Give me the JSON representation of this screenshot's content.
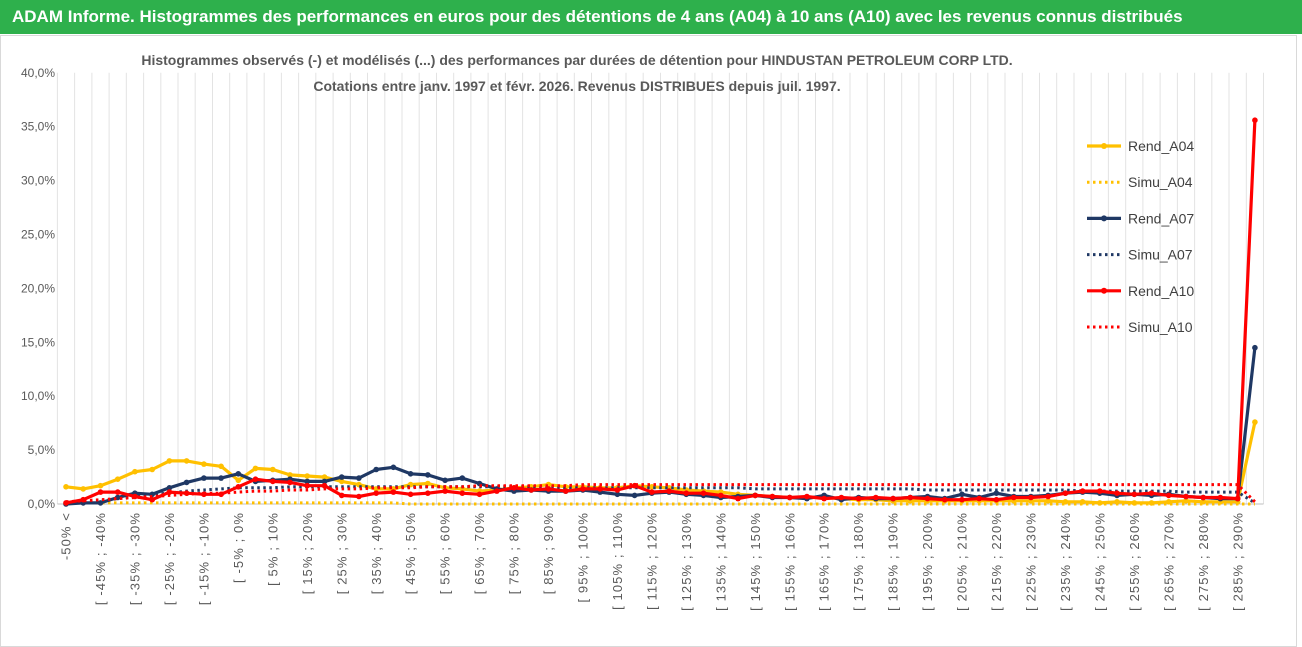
{
  "header": {
    "title": "ADAM Informe. Histogrammes des performances en euros pour des détentions de 4 ans (A04) à 10 ans (A10) avec les revenus connus distribués"
  },
  "colors": {
    "header_bg": "#2EB04C",
    "header_text": "#FFFFFF",
    "a04": "#FFC000",
    "a07": "#1F3864",
    "a10": "#FF0000"
  },
  "chart_data": {
    "type": "line",
    "title": [
      "Histogrammes observés (-) et modélisés (...) des performances par durées de détention pour HINDUSTAN PETROLEUM CORP LTD.",
      "Cotations entre janv. 1997 et févr. 2026. Revenus DISTRIBUES depuis juil. 1997."
    ],
    "xlabel": "",
    "ylabel": "",
    "ylim": [
      0,
      40
    ],
    "y_ticks": [
      0,
      5,
      10,
      15,
      20,
      25,
      30,
      35,
      40
    ],
    "y_tick_labels": [
      "0,0%",
      "5,0%",
      "10,0%",
      "15,0%",
      "20,0%",
      "25,0%",
      "30,0%",
      "35,0%",
      "40,0%"
    ],
    "category_count": 70,
    "x_tick_every": 2,
    "x_tick_labels": [
      "-50% <",
      "[ -45% ; -40%",
      "[ -35% ; -30%",
      "[ -25% ; -20%",
      "[ -15% ; -10%",
      "[ -5% ; 0%",
      "[ 5% ; 10%",
      "[ 15% ; 20%",
      "[ 25% ; 30%",
      "[ 35% ; 40%",
      "[ 45% ; 50%",
      "[ 55% ; 60%",
      "[ 65% ; 70%",
      "[ 75% ; 80%",
      "[ 85% ; 90%",
      "[ 95% ; 100%",
      "[ 105% ; 110%",
      "[ 115% ; 120%",
      "[ 125% ; 130%",
      "[ 135% ; 140%",
      "[ 145% ; 150%",
      "[ 155% ; 160%",
      "[ 165% ; 170%",
      "[ 175% ; 180%",
      "[ 185% ; 190%",
      "[ 195% ; 200%",
      "[ 205% ; 210%",
      "[ 215% ; 220%",
      "[ 225% ; 230%",
      "[ 235% ; 240%",
      "[ 245% ; 250%",
      "[ 255% ; 260%",
      "[ 265% ; 270%",
      "[ 275% ; 280%",
      "[ 285% ; 290%"
    ],
    "legend_position": "right",
    "grid": {
      "vertical": true,
      "horizontal": false
    },
    "series": [
      {
        "name": "Rend_A04",
        "color": "#FFC000",
        "dotted": false,
        "markers": true,
        "values": [
          1.6,
          1.4,
          1.7,
          2.3,
          3.0,
          3.2,
          4.0,
          4.0,
          3.7,
          3.5,
          2.2,
          3.3,
          3.2,
          2.7,
          2.6,
          2.5,
          2.1,
          1.8,
          1.4,
          1.4,
          1.8,
          1.9,
          1.5,
          1.4,
          1.2,
          1.3,
          1.5,
          1.6,
          1.8,
          1.6,
          1.6,
          1.5,
          1.5,
          1.7,
          1.6,
          1.5,
          1.3,
          1.2,
          1.1,
          0.9,
          0.8,
          0.7,
          0.6,
          0.6,
          0.6,
          0.5,
          0.4,
          0.4,
          0.3,
          0.3,
          0.3,
          0.3,
          0.3,
          0.3,
          0.3,
          0.3,
          0.3,
          0.3,
          0.2,
          0.2,
          0.1,
          0.2,
          0.1,
          0.1,
          0.2,
          0.3,
          0.2,
          0.2,
          0.2,
          7.6
        ]
      },
      {
        "name": "Simu_A04",
        "color": "#FFC000",
        "dotted": true,
        "markers": false,
        "values": [
          0.1,
          0.1,
          0.1,
          0.1,
          0.1,
          0.1,
          0.1,
          0.1,
          0.1,
          0.1,
          0.1,
          0.1,
          0.1,
          0.1,
          0.1,
          0.1,
          0.1,
          0.1,
          0.1,
          0.1,
          0.0,
          0.0,
          0.0,
          0.0,
          0.0,
          0.0,
          0.0,
          0.0,
          0.0,
          0.0,
          0.0,
          0.0,
          0.0,
          0.0,
          0.0,
          0.0,
          0.0,
          0.0,
          0.0,
          0.0,
          0.0,
          0.0,
          0.0,
          0.0,
          0.0,
          0.0,
          0.0,
          0.0,
          0.0,
          0.0,
          0.0,
          0.0,
          0.0,
          0.0,
          0.0,
          0.0,
          0.0,
          0.0,
          0.0,
          0.0,
          0.0,
          0.0,
          0.0,
          0.0,
          0.0,
          0.0,
          0.0,
          0.0,
          0.0,
          0.0
        ]
      },
      {
        "name": "Rend_A07",
        "color": "#1F3864",
        "dotted": false,
        "markers": true,
        "values": [
          0.0,
          0.1,
          0.1,
          0.6,
          1.0,
          0.9,
          1.5,
          2.0,
          2.4,
          2.4,
          2.8,
          2.1,
          2.2,
          2.3,
          2.1,
          2.1,
          2.5,
          2.4,
          3.2,
          3.4,
          2.8,
          2.7,
          2.2,
          2.4,
          1.9,
          1.4,
          1.2,
          1.3,
          1.2,
          1.2,
          1.3,
          1.1,
          0.9,
          0.8,
          1.0,
          1.1,
          0.9,
          0.8,
          0.6,
          0.7,
          0.8,
          0.6,
          0.6,
          0.5,
          0.8,
          0.4,
          0.6,
          0.5,
          0.5,
          0.6,
          0.7,
          0.5,
          0.9,
          0.6,
          1.0,
          0.7,
          0.7,
          0.8,
          1.0,
          1.1,
          1.0,
          0.8,
          0.9,
          0.8,
          0.9,
          0.7,
          0.6,
          0.5,
          0.5,
          14.5
        ]
      },
      {
        "name": "Simu_A07",
        "color": "#1F3864",
        "dotted": true,
        "markers": false,
        "values": [
          0.1,
          0.2,
          0.3,
          0.5,
          0.7,
          0.9,
          1.0,
          1.2,
          1.3,
          1.4,
          1.5,
          1.5,
          1.5,
          1.6,
          1.6,
          1.6,
          1.6,
          1.6,
          1.6,
          1.6,
          1.6,
          1.6,
          1.6,
          1.6,
          1.6,
          1.6,
          1.6,
          1.6,
          1.5,
          1.5,
          1.5,
          1.5,
          1.5,
          1.5,
          1.5,
          1.5,
          1.5,
          1.5,
          1.5,
          1.5,
          1.4,
          1.4,
          1.4,
          1.4,
          1.4,
          1.4,
          1.4,
          1.4,
          1.4,
          1.4,
          1.3,
          1.3,
          1.3,
          1.3,
          1.3,
          1.3,
          1.3,
          1.3,
          1.3,
          1.2,
          1.2,
          1.2,
          1.2,
          1.2,
          1.2,
          1.1,
          1.1,
          1.1,
          1.1,
          0.1
        ]
      },
      {
        "name": "Rend_A10",
        "color": "#FF0000",
        "dotted": false,
        "markers": true,
        "values": [
          0.1,
          0.4,
          1.1,
          1.1,
          0.7,
          0.4,
          1.1,
          1.0,
          0.9,
          0.9,
          1.6,
          2.3,
          2.1,
          2.0,
          1.7,
          1.7,
          0.8,
          0.7,
          1.0,
          1.1,
          0.9,
          1.0,
          1.2,
          1.0,
          0.9,
          1.2,
          1.5,
          1.3,
          1.4,
          1.2,
          1.4,
          1.4,
          1.3,
          1.7,
          1.1,
          1.2,
          1.0,
          1.0,
          0.8,
          0.5,
          0.8,
          0.7,
          0.6,
          0.7,
          0.5,
          0.6,
          0.5,
          0.6,
          0.5,
          0.6,
          0.5,
          0.4,
          0.4,
          0.5,
          0.4,
          0.6,
          0.6,
          0.7,
          1.0,
          1.2,
          1.2,
          1.0,
          0.9,
          1.0,
          0.8,
          0.7,
          0.6,
          0.6,
          0.5,
          35.6
        ]
      },
      {
        "name": "Simu_A10",
        "color": "#FF0000",
        "dotted": true,
        "markers": false,
        "values": [
          0.2,
          0.3,
          0.4,
          0.5,
          0.6,
          0.7,
          0.8,
          0.9,
          1.0,
          1.0,
          1.1,
          1.2,
          1.2,
          1.3,
          1.3,
          1.4,
          1.4,
          1.4,
          1.5,
          1.5,
          1.5,
          1.6,
          1.6,
          1.6,
          1.7,
          1.7,
          1.7,
          1.7,
          1.7,
          1.7,
          1.8,
          1.8,
          1.8,
          1.8,
          1.8,
          1.8,
          1.8,
          1.8,
          1.8,
          1.8,
          1.8,
          1.8,
          1.8,
          1.8,
          1.8,
          1.8,
          1.8,
          1.8,
          1.8,
          1.8,
          1.8,
          1.8,
          1.8,
          1.8,
          1.8,
          1.8,
          1.8,
          1.8,
          1.8,
          1.8,
          1.8,
          1.8,
          1.8,
          1.8,
          1.8,
          1.8,
          1.8,
          1.8,
          1.8,
          0.2
        ]
      }
    ]
  }
}
